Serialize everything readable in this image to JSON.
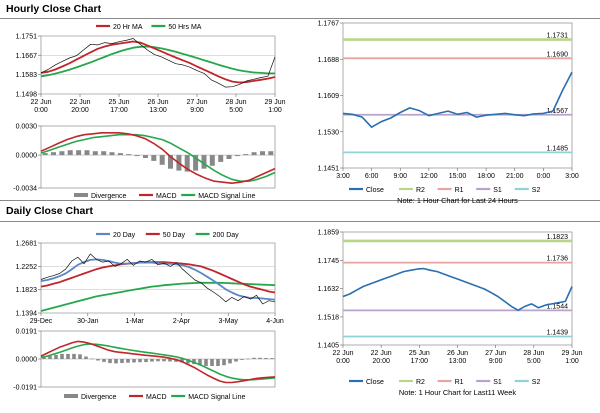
{
  "sections": {
    "hourly_title": "Hourly Close Chart",
    "daily_title": "Daily Close Chart"
  },
  "colors": {
    "ma_short": "#c0262a",
    "ma_long": "#27a74b",
    "day20": "#5b86c5",
    "close": "#2a6fb0",
    "R2": "#b9d58a",
    "R1": "#e8a3a3",
    "S1": "#b7a3cc",
    "S2": "#8fd3d6",
    "divergence": "#888888",
    "grid": "#bdbdbd"
  },
  "chart_data": [
    {
      "id": "hourly_price",
      "type": "line",
      "legend": [
        "20 Hr MA",
        "50 Hrs MA"
      ],
      "x_ticks": [
        "22 Jun\n0:00",
        "22 Jun\n20:00",
        "25 Jun\n17:00",
        "26 Jun\n13:00",
        "27 Jun\n9:00",
        "28 Jun\n5:00",
        "29 Jun\n1:00"
      ],
      "y_ticks": [
        1.1751,
        1.1667,
        1.1583,
        1.1498
      ],
      "ylim": [
        1.1498,
        1.1751
      ],
      "series": [
        {
          "name": "Close",
          "values": [
            1.159,
            1.1605,
            1.1625,
            1.164,
            1.1655,
            1.1665,
            1.169,
            1.1715,
            1.1712,
            1.1722,
            1.1718,
            1.1726,
            1.1732,
            1.174,
            1.1715,
            1.169,
            1.167,
            1.166,
            1.1645,
            1.163,
            1.1625,
            1.1615,
            1.16,
            1.1588,
            1.156,
            1.1545,
            1.1528,
            1.153,
            1.154,
            1.1555,
            1.1562,
            1.157,
            1.1575,
            1.166
          ]
        },
        {
          "name": "20 Hr MA",
          "values": [
            1.159,
            1.1595,
            1.1605,
            1.1618,
            1.1632,
            1.1648,
            1.1664,
            1.168,
            1.1695,
            1.1705,
            1.1713,
            1.1718,
            1.1722,
            1.1727,
            1.1722,
            1.171,
            1.1697,
            1.1684,
            1.167,
            1.1657,
            1.1645,
            1.1633,
            1.1618,
            1.1604,
            1.159,
            1.1575,
            1.1562,
            1.1552,
            1.1548,
            1.155,
            1.1555,
            1.156,
            1.1565,
            1.1572
          ]
        },
        {
          "name": "50 Hrs MA",
          "values": [
            1.1575,
            1.158,
            1.1587,
            1.1595,
            1.1604,
            1.1614,
            1.1625,
            1.1636,
            1.1648,
            1.166,
            1.1672,
            1.1683,
            1.1692,
            1.17,
            1.1704,
            1.1705,
            1.1702,
            1.1697,
            1.169,
            1.1682,
            1.1673,
            1.1664,
            1.1655,
            1.1645,
            1.1636,
            1.1626,
            1.1617,
            1.1608,
            1.1601,
            1.1596,
            1.1592,
            1.159,
            1.1588,
            1.1588
          ]
        }
      ]
    },
    {
      "id": "hourly_macd",
      "type": "line",
      "legend": [
        "Divergence",
        "MACD",
        "MACD Signal Line"
      ],
      "y_ticks": [
        0.003,
        0.0,
        -0.0034
      ],
      "ylim": [
        -0.0034,
        0.003
      ],
      "series": [
        {
          "name": "MACD",
          "values": [
            0.0004,
            0.0008,
            0.0012,
            0.0016,
            0.0019,
            0.0021,
            0.0022,
            0.0023,
            0.0023,
            0.0023,
            0.0022,
            0.002,
            0.0017,
            0.0012,
            0.0006,
            -0.0002,
            -0.0009,
            -0.0015,
            -0.002,
            -0.0024,
            -0.0027,
            -0.0028,
            -0.0029,
            -0.0028,
            -0.0026,
            -0.0022,
            -0.0018,
            -0.0014
          ]
        },
        {
          "name": "MACD Signal Line",
          "values": [
            0.0002,
            0.0005,
            0.0008,
            0.0011,
            0.0014,
            0.0016,
            0.0018,
            0.0019,
            0.002,
            0.0021,
            0.0021,
            0.0021,
            0.002,
            0.0018,
            0.0016,
            0.0012,
            0.0007,
            0.0002,
            -0.0004,
            -0.001,
            -0.0016,
            -0.0021,
            -0.0025,
            -0.0027,
            -0.0027,
            -0.0025,
            -0.0022,
            -0.0018
          ]
        },
        {
          "name": "Divergence",
          "values": [
            0.0002,
            0.0003,
            0.0004,
            0.0005,
            0.0005,
            0.0005,
            0.0004,
            0.0004,
            0.0003,
            0.0002,
            0.0001,
            -0.0001,
            -0.0003,
            -0.0006,
            -0.001,
            -0.0014,
            -0.0016,
            -0.0017,
            -0.0016,
            -0.0014,
            -0.0011,
            -0.0007,
            -0.0004,
            -0.0001,
            0.0001,
            0.0003,
            0.0004,
            0.0004
          ]
        }
      ]
    },
    {
      "id": "hourly_levels",
      "type": "line",
      "title": "",
      "note": "Note: 1 Hour Chart for Last 24 Hours",
      "legend": [
        "Close",
        "R2",
        "R1",
        "S1",
        "S2"
      ],
      "x_ticks": [
        "3:00",
        "6:00",
        "9:00",
        "12:00",
        "15:00",
        "18:00",
        "21:00",
        "0:00",
        "3:00"
      ],
      "y_ticks": [
        1.1767,
        1.1688,
        1.1609,
        1.153,
        1.1451
      ],
      "ylim": [
        1.1451,
        1.1767
      ],
      "levels": {
        "R2": 1.1731,
        "R1": 1.169,
        "S1": 1.1567,
        "S2": 1.1485
      },
      "level_labels": {
        "R2": "1.1731",
        "R1": "1.1690",
        "S1": "1.1567",
        "S2": "1.1485"
      },
      "series": [
        {
          "name": "Close",
          "values": [
            1.157,
            1.1568,
            1.1562,
            1.154,
            1.1552,
            1.156,
            1.1572,
            1.1582,
            1.1576,
            1.1565,
            1.157,
            1.1575,
            1.1568,
            1.1572,
            1.1562,
            1.1566,
            1.1568,
            1.157,
            1.1567,
            1.1565,
            1.1569,
            1.157,
            1.1575,
            1.162,
            1.166
          ]
        }
      ]
    },
    {
      "id": "daily_price",
      "type": "line",
      "legend": [
        "20 Day",
        "50 Day",
        "200 Day"
      ],
      "x_ticks": [
        "29-Dec",
        "30-Jan",
        "1-Mar",
        "2-Apr",
        "3-May",
        "4-Jun"
      ],
      "y_ticks": [
        1.2681,
        1.2252,
        1.1823,
        1.1394
      ],
      "ylim": [
        1.1394,
        1.2681
      ],
      "series": [
        {
          "name": "Close",
          "values": [
            1.201,
            1.205,
            1.208,
            1.212,
            1.22,
            1.235,
            1.242,
            1.23,
            1.248,
            1.238,
            1.233,
            1.235,
            1.225,
            1.23,
            1.238,
            1.227,
            1.235,
            1.233,
            1.238,
            1.228,
            1.231,
            1.225,
            1.232,
            1.22,
            1.21,
            1.2,
            1.195,
            1.185,
            1.178,
            1.17,
            1.16,
            1.168,
            1.162,
            1.17,
            1.165,
            1.172,
            1.156,
            1.162,
            1.16
          ]
        },
        {
          "name": "20 Day",
          "values": [
            1.198,
            1.2,
            1.203,
            1.207,
            1.212,
            1.22,
            1.228,
            1.233,
            1.237,
            1.238,
            1.237,
            1.235,
            1.232,
            1.23,
            1.23,
            1.231,
            1.232,
            1.232,
            1.232,
            1.231,
            1.23,
            1.23,
            1.229,
            1.227,
            1.224,
            1.219,
            1.213,
            1.206,
            1.199,
            1.191,
            1.183,
            1.177,
            1.172,
            1.169,
            1.167,
            1.167,
            1.166,
            1.165,
            1.164
          ]
        },
        {
          "name": "50 Day",
          "values": [
            1.188,
            1.19,
            1.193,
            1.196,
            1.2,
            1.204,
            1.208,
            1.212,
            1.216,
            1.22,
            1.223,
            1.225,
            1.227,
            1.229,
            1.23,
            1.231,
            1.232,
            1.233,
            1.233,
            1.233,
            1.233,
            1.232,
            1.231,
            1.23,
            1.229,
            1.227,
            1.225,
            1.221,
            1.217,
            1.212,
            1.207,
            1.202,
            1.197,
            1.192,
            1.188,
            1.185,
            1.182,
            1.179,
            1.177
          ]
        },
        {
          "name": "200 Day",
          "values": [
            1.143,
            1.146,
            1.149,
            1.152,
            1.155,
            1.158,
            1.161,
            1.164,
            1.167,
            1.17,
            1.172,
            1.174,
            1.176,
            1.178,
            1.18,
            1.182,
            1.184,
            1.186,
            1.188,
            1.189,
            1.1905,
            1.1915,
            1.1925,
            1.1935,
            1.194,
            1.1945,
            1.195,
            1.195,
            1.195,
            1.195,
            1.1945,
            1.194,
            1.1935,
            1.193,
            1.1925,
            1.192,
            1.1915,
            1.191,
            1.1905
          ]
        }
      ]
    },
    {
      "id": "daily_macd",
      "type": "line",
      "legend": [
        "Divergence",
        "MACD",
        "MACD Signal Line"
      ],
      "y_ticks": [
        0.0191,
        0.0,
        -0.0191
      ],
      "ylim": [
        -0.0191,
        0.0191
      ],
      "series": [
        {
          "name": "MACD",
          "values": [
            0.002,
            0.004,
            0.006,
            0.008,
            0.0095,
            0.011,
            0.012,
            0.0115,
            0.0105,
            0.009,
            0.0075,
            0.006,
            0.005,
            0.0045,
            0.004,
            0.0035,
            0.003,
            0.0025,
            0.0022,
            0.0018,
            0.0012,
            0.0005,
            -0.0005,
            -0.002,
            -0.004,
            -0.006,
            -0.0085,
            -0.011,
            -0.013,
            -0.015,
            -0.016,
            -0.016,
            -0.0155,
            -0.0148,
            -0.014,
            -0.0132,
            -0.0128,
            -0.0125,
            -0.0122
          ]
        },
        {
          "name": "MACD Signal Line",
          "values": [
            0.001,
            0.002,
            0.0032,
            0.0045,
            0.006,
            0.0075,
            0.0088,
            0.0098,
            0.0102,
            0.01,
            0.0095,
            0.0088,
            0.008,
            0.0072,
            0.0065,
            0.0058,
            0.0052,
            0.0046,
            0.004,
            0.0034,
            0.0028,
            0.0022,
            0.0014,
            0.0004,
            -0.001,
            -0.0025,
            -0.0042,
            -0.0062,
            -0.0082,
            -0.0102,
            -0.0118,
            -0.013,
            -0.0138,
            -0.0142,
            -0.0142,
            -0.014,
            -0.0136,
            -0.0132,
            -0.0128
          ]
        },
        {
          "name": "Divergence",
          "values": [
            0.001,
            0.002,
            0.0028,
            0.0035,
            0.0035,
            0.0035,
            0.0032,
            0.0017,
            0.0003,
            -0.001,
            -0.002,
            -0.0028,
            -0.003,
            -0.0027,
            -0.0025,
            -0.0023,
            -0.0022,
            -0.0021,
            -0.0018,
            -0.0016,
            -0.0016,
            -0.0017,
            -0.0019,
            -0.0024,
            -0.003,
            -0.0035,
            -0.0043,
            -0.0048,
            -0.0048,
            -0.0048,
            -0.0042,
            -0.003,
            -0.0017,
            -0.0006,
            0.0002,
            0.0008,
            0.0008,
            0.0007,
            0.0006
          ]
        }
      ]
    },
    {
      "id": "daily_levels",
      "type": "line",
      "note": "Note: 1 Hour Chart for Last11 Week",
      "legend": [
        "Close",
        "R2",
        "R1",
        "S1",
        "S2"
      ],
      "x_ticks": [
        "22 Jun\n0:00",
        "22 Jun\n20:00",
        "25 Jun\n17:00",
        "26 Jun\n13:00",
        "27 Jun\n9:00",
        "28 Jun\n5:00",
        "29 Jun\n1:00"
      ],
      "y_ticks": [
        1.1859,
        1.1745,
        1.1632,
        1.1518,
        1.1405
      ],
      "ylim": [
        1.1405,
        1.1859
      ],
      "levels": {
        "R2": 1.1823,
        "R1": 1.1736,
        "S1": 1.1544,
        "S2": 1.1439
      },
      "level_labels": {
        "R2": "1.1823",
        "R1": "1.1736",
        "S1": "1.1544",
        "S2": "1.1439"
      },
      "series": [
        {
          "name": "Close",
          "values": [
            1.16,
            1.161,
            1.1625,
            1.164,
            1.165,
            1.166,
            1.167,
            1.168,
            1.169,
            1.17,
            1.1705,
            1.171,
            1.1712,
            1.1705,
            1.17,
            1.169,
            1.168,
            1.167,
            1.166,
            1.165,
            1.164,
            1.163,
            1.1615,
            1.16,
            1.158,
            1.156,
            1.1545,
            1.156,
            1.157,
            1.1555,
            1.1565,
            1.157,
            1.1575,
            1.158,
            1.164
          ]
        }
      ]
    }
  ]
}
